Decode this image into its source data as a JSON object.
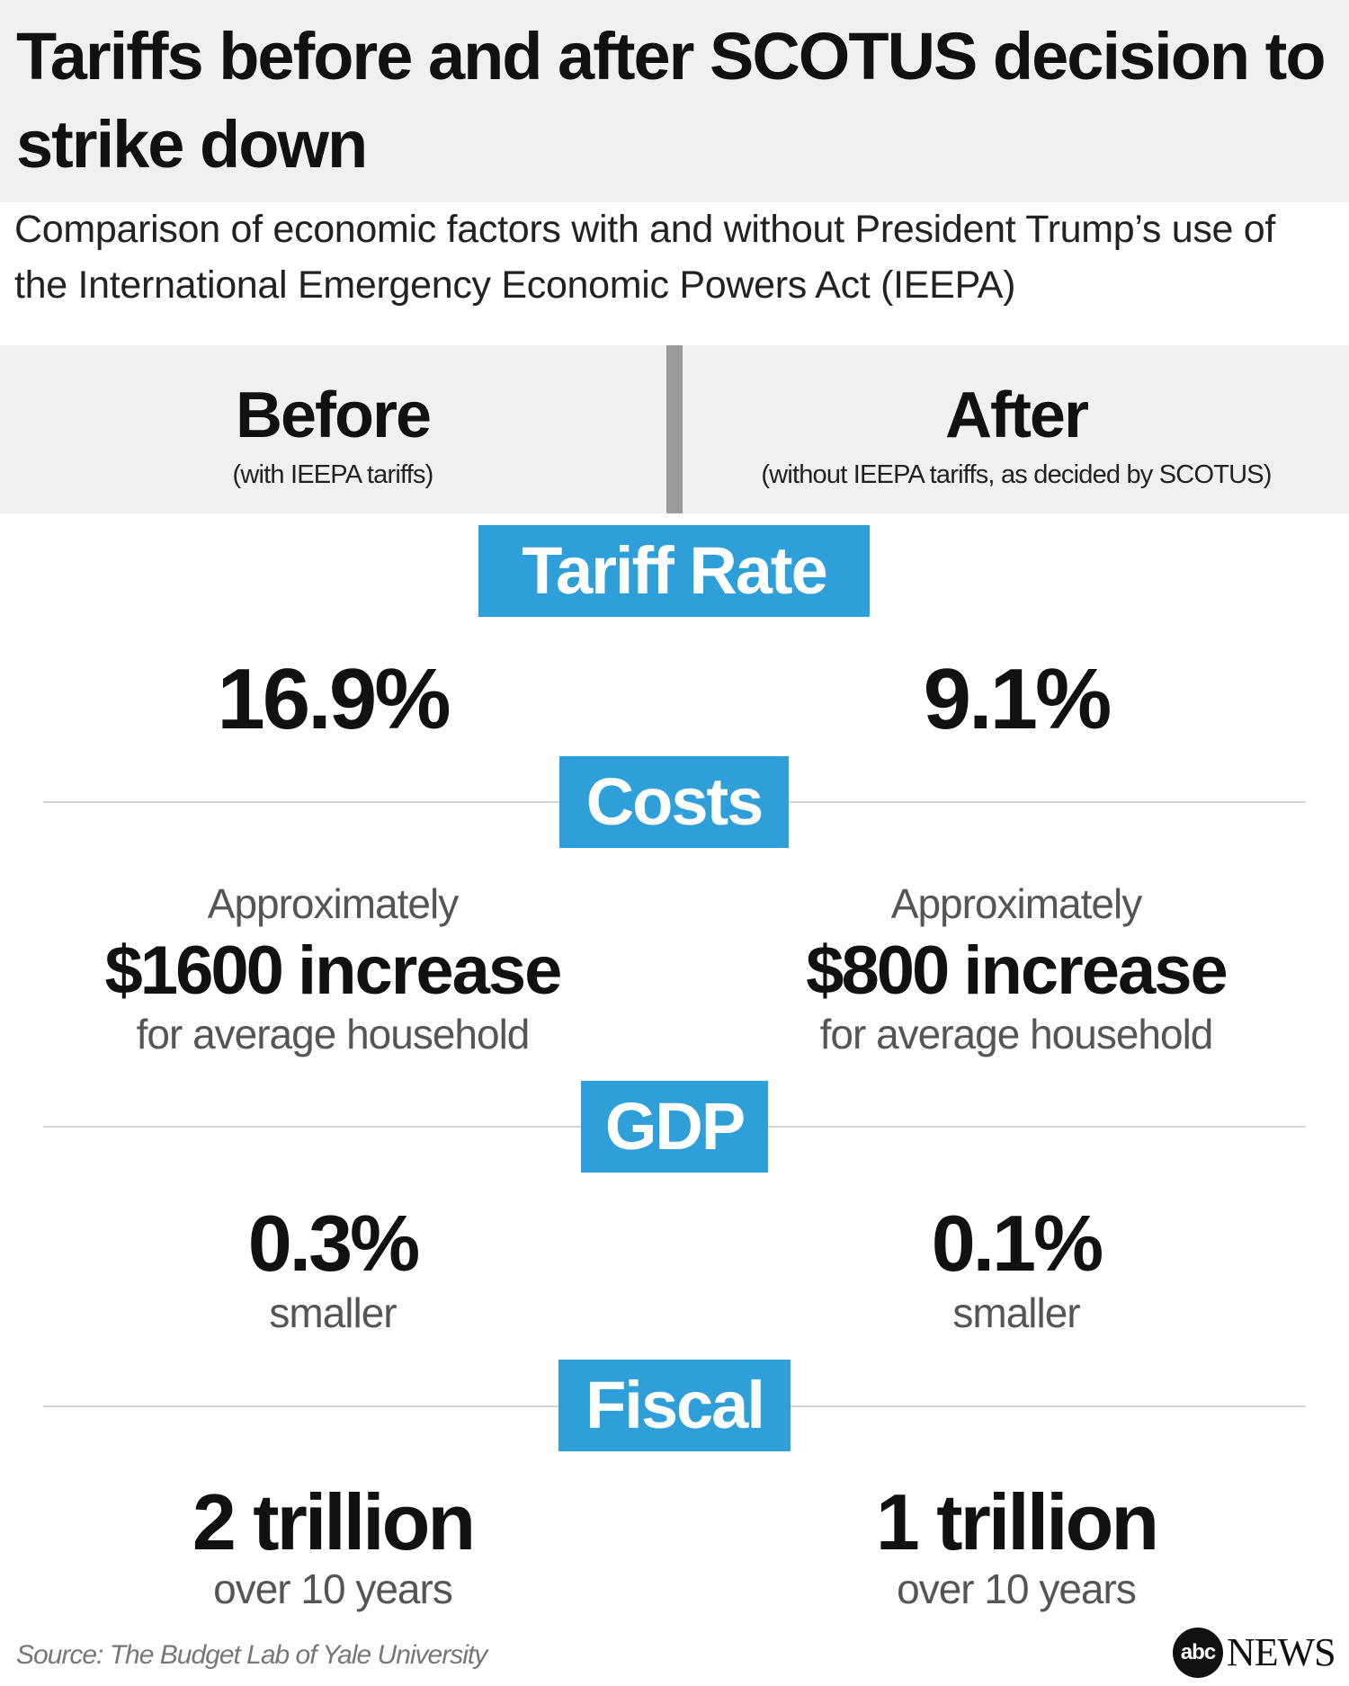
{
  "header": {
    "title": "Tariffs before and after SCOTUS decision to strike down",
    "subtitle": "Comparison of economic factors with and without President Trump’s use of the International Emergency Economic Powers Act (IEEPA)"
  },
  "columns": {
    "before": {
      "title": "Before",
      "subtitle": "(with IEEPA tariffs)"
    },
    "after": {
      "title": "After",
      "subtitle": "(without IEEPA tariffs, as decided by SCOTUS)"
    }
  },
  "sections": {
    "tariff_rate": {
      "label": "Tariff Rate",
      "before_value": "16.9%",
      "after_value": "9.1%"
    },
    "costs": {
      "label": "Costs",
      "before_prefix": "Approximately",
      "before_value": "$1600",
      "before_word": "increase",
      "before_suffix": "for average household",
      "after_prefix": "Approximately",
      "after_value": "$800",
      "after_word": "increase",
      "after_suffix": "for average household"
    },
    "gdp": {
      "label": "GDP",
      "before_value": "0.3%",
      "before_suffix": "smaller",
      "after_value": "0.1%",
      "after_suffix": "smaller"
    },
    "fiscal": {
      "label": "Fiscal",
      "before_value": "2 trillion",
      "before_suffix": "over 10 years",
      "after_value": "1 trillion",
      "after_suffix": "over 10 years"
    }
  },
  "footer": {
    "source": "Source: The Budget Lab of Yale University",
    "logo_mark": "abc",
    "logo_text": "NEWS"
  },
  "colors": {
    "accent": "#2e9fd9",
    "panel": "#f0f0f0",
    "divider": "#9b9b9b",
    "text": "#111111",
    "muted": "#555555"
  }
}
